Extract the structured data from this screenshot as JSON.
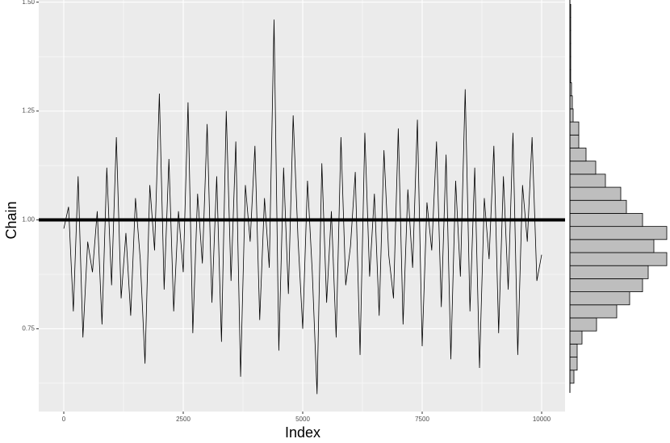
{
  "chart_data": [
    {
      "type": "line",
      "xlabel": "Index",
      "ylabel": "Chain",
      "color": "#000000",
      "x": [
        0,
        100,
        200,
        300,
        400,
        500,
        600,
        700,
        800,
        900,
        1000,
        1100,
        1200,
        1300,
        1400,
        1500,
        1600,
        1700,
        1800,
        1900,
        2000,
        2100,
        2200,
        2300,
        2400,
        2500,
        2600,
        2700,
        2800,
        2900,
        3000,
        3100,
        3200,
        3300,
        3400,
        3500,
        3600,
        3700,
        3800,
        3900,
        4000,
        4100,
        4200,
        4300,
        4400,
        4500,
        4600,
        4700,
        4800,
        4900,
        5000,
        5100,
        5200,
        5300,
        5400,
        5500,
        5600,
        5700,
        5800,
        5900,
        6000,
        6100,
        6200,
        6300,
        6400,
        6500,
        6600,
        6700,
        6800,
        6900,
        7000,
        7100,
        7200,
        7300,
        7400,
        7500,
        7600,
        7700,
        7800,
        7900,
        8000,
        8100,
        8200,
        8300,
        8400,
        8500,
        8600,
        8700,
        8800,
        8900,
        9000,
        9100,
        9200,
        9300,
        9400,
        9500,
        9600,
        9700,
        9800,
        9900,
        10000
      ],
      "values": [
        0.98,
        1.03,
        0.79,
        1.1,
        0.73,
        0.95,
        0.88,
        1.02,
        0.76,
        1.12,
        0.85,
        1.19,
        0.82,
        0.97,
        0.78,
        1.05,
        0.91,
        0.67,
        1.08,
        0.93,
        1.29,
        0.84,
        1.14,
        0.79,
        1.02,
        0.88,
        1.27,
        0.74,
        1.06,
        0.9,
        1.22,
        0.81,
        1.1,
        0.72,
        1.25,
        0.86,
        1.18,
        0.64,
        1.08,
        0.95,
        1.17,
        0.77,
        1.05,
        0.89,
        1.46,
        0.7,
        1.12,
        0.83,
        1.24,
        0.96,
        0.75,
        1.09,
        0.88,
        0.6,
        1.13,
        0.81,
        1.02,
        0.73,
        1.19,
        0.85,
        0.94,
        1.11,
        0.69,
        1.2,
        0.87,
        1.06,
        0.78,
        1.16,
        0.92,
        0.82,
        1.21,
        0.76,
        1.07,
        0.89,
        1.23,
        0.71,
        1.04,
        0.93,
        1.18,
        0.8,
        1.15,
        0.68,
        1.09,
        0.87,
        1.3,
        0.79,
        1.12,
        0.66,
        1.05,
        0.91,
        1.17,
        0.74,
        1.1,
        0.84,
        1.2,
        0.69,
        1.08,
        0.95,
        1.19,
        0.86,
        0.92
      ],
      "hline": 1,
      "xlim": [
        -524,
        10490
      ],
      "xticks": [
        0,
        2500,
        5000,
        7500,
        10000
      ],
      "ylim": [
        0.56,
        1.505
      ],
      "yticks": [
        {
          "value": 0.75,
          "label": "0.75"
        },
        {
          "value": 1,
          "label": "1.00"
        },
        {
          "value": 1.25,
          "label": "1.25"
        },
        {
          "value": 1.5,
          "label": "1.50"
        }
      ],
      "grid": true
    },
    {
      "type": "histogram",
      "orientation": "horizontal",
      "color": "#bebebe",
      "bins": [
        0.625,
        0.655,
        0.685,
        0.715,
        0.745,
        0.775,
        0.805,
        0.835,
        0.865,
        0.895,
        0.925,
        0.955,
        0.985,
        1.015,
        1.045,
        1.075,
        1.105,
        1.135,
        1.165,
        1.195,
        1.225,
        1.255,
        1.285,
        1.315,
        1.345,
        1.375,
        1.405,
        1.435,
        1.465,
        1.495
      ],
      "counts": [
        50,
        90,
        90,
        150,
        330,
        580,
        740,
        900,
        970,
        1200,
        1040,
        1200,
        900,
        700,
        630,
        440,
        320,
        200,
        110,
        110,
        40,
        30,
        20,
        10,
        10,
        10,
        10,
        10,
        10
      ],
      "xlim": [
        0,
        1200
      ]
    }
  ]
}
